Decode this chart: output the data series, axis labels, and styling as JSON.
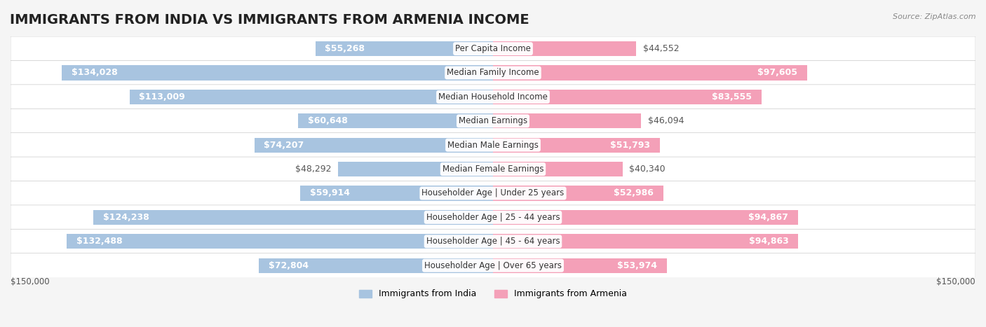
{
  "title": "IMMIGRANTS FROM INDIA VS IMMIGRANTS FROM ARMENIA INCOME",
  "source": "Source: ZipAtlas.com",
  "categories": [
    "Per Capita Income",
    "Median Family Income",
    "Median Household Income",
    "Median Earnings",
    "Median Male Earnings",
    "Median Female Earnings",
    "Householder Age | Under 25 years",
    "Householder Age | 25 - 44 years",
    "Householder Age | 45 - 64 years",
    "Householder Age | Over 65 years"
  ],
  "india_values": [
    55268,
    134028,
    113009,
    60648,
    74207,
    48292,
    59914,
    124238,
    132488,
    72804
  ],
  "armenia_values": [
    44552,
    97605,
    83555,
    46094,
    51793,
    40340,
    52986,
    94867,
    94863,
    53974
  ],
  "india_labels": [
    "$55,268",
    "$134,028",
    "$113,009",
    "$60,648",
    "$74,207",
    "$48,292",
    "$59,914",
    "$124,238",
    "$132,488",
    "$72,804"
  ],
  "armenia_labels": [
    "$44,552",
    "$97,605",
    "$83,555",
    "$46,094",
    "$51,793",
    "$40,340",
    "$52,986",
    "$94,867",
    "$94,863",
    "$53,974"
  ],
  "india_color": "#a8c4e0",
  "armenia_color": "#f4a0b8",
  "india_color_dark": "#5b9bd5",
  "armenia_color_dark": "#f06090",
  "india_label_dark": [
    "#134028",
    "#134028"
  ],
  "max_value": 150000,
  "x_tick_labels": [
    "$150,000",
    "$150,000"
  ],
  "legend_india": "Immigrants from India",
  "legend_armenia": "Immigrants from Armenia",
  "background_color": "#f5f5f5",
  "bar_background": "#ffffff",
  "title_fontsize": 14,
  "label_fontsize": 9,
  "category_fontsize": 8.5
}
